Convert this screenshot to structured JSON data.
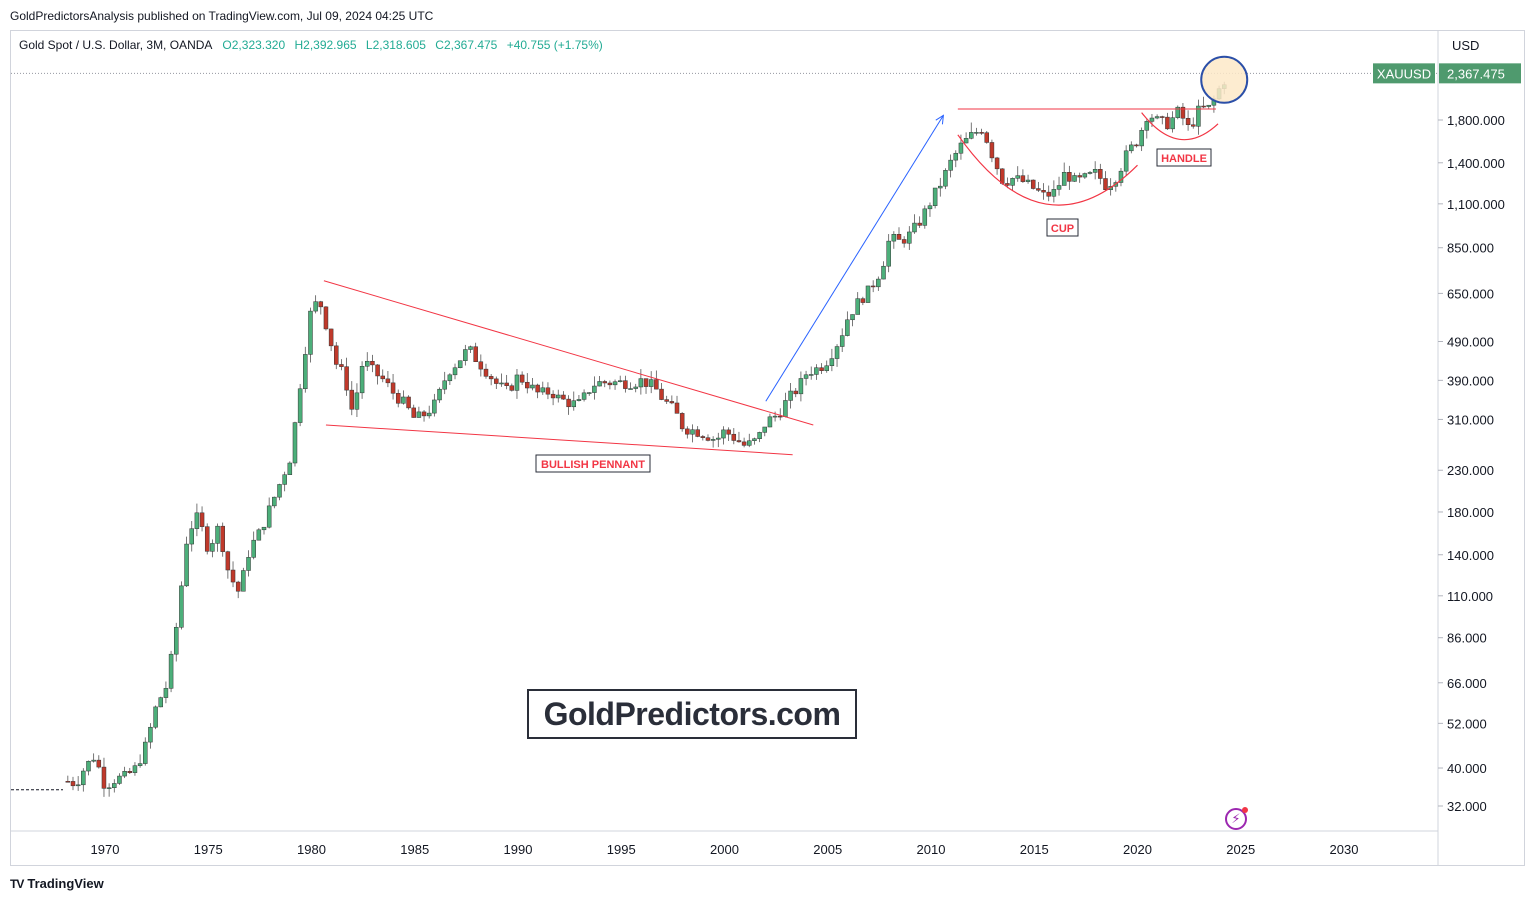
{
  "header": {
    "published": "GoldPredictorsAnalysis published on TradingView.com, Jul 09, 2024 04:25 UTC"
  },
  "legend": {
    "symbol": "Gold Spot / U.S. Dollar, 3M, OANDA",
    "open": "O2,323.320",
    "high": "H2,392.965",
    "low": "L2,318.605",
    "close": "C2,367.475",
    "change": "+40.755 (+1.75%)"
  },
  "currency": "USD",
  "price_tag": {
    "symbol": "XAUUSD",
    "value": "2,367.475",
    "color": "#4f9a6e"
  },
  "watermark": "GoldPredictors.com",
  "branding": {
    "name": "TradingView",
    "logo": "TV"
  },
  "icons": {
    "alert": "lightning-icon"
  },
  "colors": {
    "up": "#4caf7a",
    "down": "#c0392b",
    "trend": "#f23645",
    "arrow": "#2962ff"
  },
  "chart_data": {
    "type": "candlestick",
    "scale": "log",
    "x_ticks": [
      "1970",
      "1975",
      "1980",
      "1985",
      "1990",
      "1995",
      "2000",
      "2005",
      "2010",
      "2015",
      "2020",
      "2025",
      "2030"
    ],
    "y_ticks": [
      "1,800.000",
      "1,400.000",
      "1,100.000",
      "850.000",
      "650.000",
      "490.000",
      "390.000",
      "310.000",
      "230.000",
      "180.000",
      "140.000",
      "110.000",
      "86.000",
      "66.000",
      "52.000",
      "40.000",
      "32.000"
    ],
    "last_price": 2367.475,
    "path": [
      [
        1968.2,
        37
      ],
      [
        1968.6,
        36.5
      ],
      [
        1969.0,
        40
      ],
      [
        1969.5,
        43
      ],
      [
        1970.0,
        36
      ],
      [
        1970.5,
        37.5
      ],
      [
        1971.0,
        38
      ],
      [
        1971.5,
        40
      ],
      [
        1972.0,
        46
      ],
      [
        1972.5,
        58
      ],
      [
        1973.0,
        65
      ],
      [
        1973.5,
        95
      ],
      [
        1974.0,
        160
      ],
      [
        1974.5,
        175
      ],
      [
        1975.0,
        145
      ],
      [
        1975.5,
        165
      ],
      [
        1976.0,
        125
      ],
      [
        1976.5,
        112
      ],
      [
        1977.0,
        145
      ],
      [
        1977.5,
        160
      ],
      [
        1978.0,
        185
      ],
      [
        1978.5,
        215
      ],
      [
        1979.0,
        250
      ],
      [
        1979.5,
        400
      ],
      [
        1980.0,
        600
      ],
      [
        1980.4,
        620
      ],
      [
        1980.8,
        520
      ],
      [
        1981.2,
        430
      ],
      [
        1981.6,
        400
      ],
      [
        1982.0,
        320
      ],
      [
        1982.5,
        440
      ],
      [
        1983.0,
        410
      ],
      [
        1983.5,
        390
      ],
      [
        1984.0,
        360
      ],
      [
        1984.5,
        340
      ],
      [
        1985.0,
        310
      ],
      [
        1985.5,
        320
      ],
      [
        1986.0,
        340
      ],
      [
        1986.6,
        410
      ],
      [
        1987.0,
        430
      ],
      [
        1987.6,
        470
      ],
      [
        1988.0,
        440
      ],
      [
        1988.5,
        410
      ],
      [
        1989.0,
        380
      ],
      [
        1989.5,
        365
      ],
      [
        1990.0,
        400
      ],
      [
        1990.5,
        380
      ],
      [
        1991.0,
        360
      ],
      [
        1991.6,
        365
      ],
      [
        1992.0,
        350
      ],
      [
        1992.6,
        340
      ],
      [
        1993.0,
        340
      ],
      [
        1993.6,
        380
      ],
      [
        1994.0,
        385
      ],
      [
        1994.6,
        385
      ],
      [
        1995.0,
        385
      ],
      [
        1995.6,
        385
      ],
      [
        1996.0,
        390
      ],
      [
        1996.6,
        375
      ],
      [
        1997.0,
        350
      ],
      [
        1997.6,
        325
      ],
      [
        1998.0,
        295
      ],
      [
        1998.6,
        290
      ],
      [
        1999.0,
        285
      ],
      [
        1999.6,
        275
      ],
      [
        2000.0,
        290
      ],
      [
        2000.6,
        275
      ],
      [
        2001.0,
        265
      ],
      [
        2001.6,
        275
      ],
      [
        2002.0,
        305
      ],
      [
        2002.6,
        320
      ],
      [
        2003.0,
        345
      ],
      [
        2003.6,
        375
      ],
      [
        2004.0,
        410
      ],
      [
        2004.6,
        420
      ],
      [
        2005.0,
        440
      ],
      [
        2005.6,
        500
      ],
      [
        2006.0,
        570
      ],
      [
        2006.6,
        630
      ],
      [
        2007.0,
        660
      ],
      [
        2007.6,
        750
      ],
      [
        2008.0,
        900
      ],
      [
        2008.5,
        880
      ],
      [
        2009.0,
        920
      ],
      [
        2009.5,
        1000
      ],
      [
        2010.0,
        1120
      ],
      [
        2010.5,
        1250
      ],
      [
        2011.0,
        1420
      ],
      [
        2011.5,
        1560
      ],
      [
        2012.0,
        1650
      ],
      [
        2012.5,
        1720
      ],
      [
        2013.0,
        1450
      ],
      [
        2013.5,
        1250
      ],
      [
        2014.0,
        1280
      ],
      [
        2014.5,
        1250
      ],
      [
        2015.0,
        1200
      ],
      [
        2015.5,
        1150
      ],
      [
        2016.0,
        1180
      ],
      [
        2016.5,
        1320
      ],
      [
        2017.0,
        1250
      ],
      [
        2017.5,
        1280
      ],
      [
        2018.0,
        1320
      ],
      [
        2018.5,
        1220
      ],
      [
        2019.0,
        1300
      ],
      [
        2019.5,
        1480
      ],
      [
        2020.0,
        1600
      ],
      [
        2020.5,
        1880
      ],
      [
        2021.0,
        1780
      ],
      [
        2021.5,
        1760
      ],
      [
        2022.0,
        1900
      ],
      [
        2022.5,
        1700
      ],
      [
        2023.0,
        1920
      ],
      [
        2023.5,
        1930
      ],
      [
        2024.0,
        2180
      ],
      [
        2024.4,
        2367
      ]
    ],
    "annotations": [
      {
        "type": "label",
        "text": "BULLISH PENNANT"
      },
      {
        "type": "label",
        "text": "CUP"
      },
      {
        "type": "label",
        "text": "HANDLE"
      }
    ],
    "trendlines": [
      {
        "from": [
          1980.6,
          700
        ],
        "to": [
          2004.3,
          300
        ]
      },
      {
        "from": [
          1980.7,
          300
        ],
        "to": [
          2003.3,
          252
        ]
      },
      {
        "from": [
          2011.3,
          1920
        ],
        "to": [
          2023.8,
          1920
        ]
      }
    ],
    "arrow": {
      "from": [
        2002.0,
        345
      ],
      "to": [
        2010.6,
        1850
      ]
    },
    "highlight_circle": {
      "x": 2024.2,
      "y": 2320
    }
  }
}
